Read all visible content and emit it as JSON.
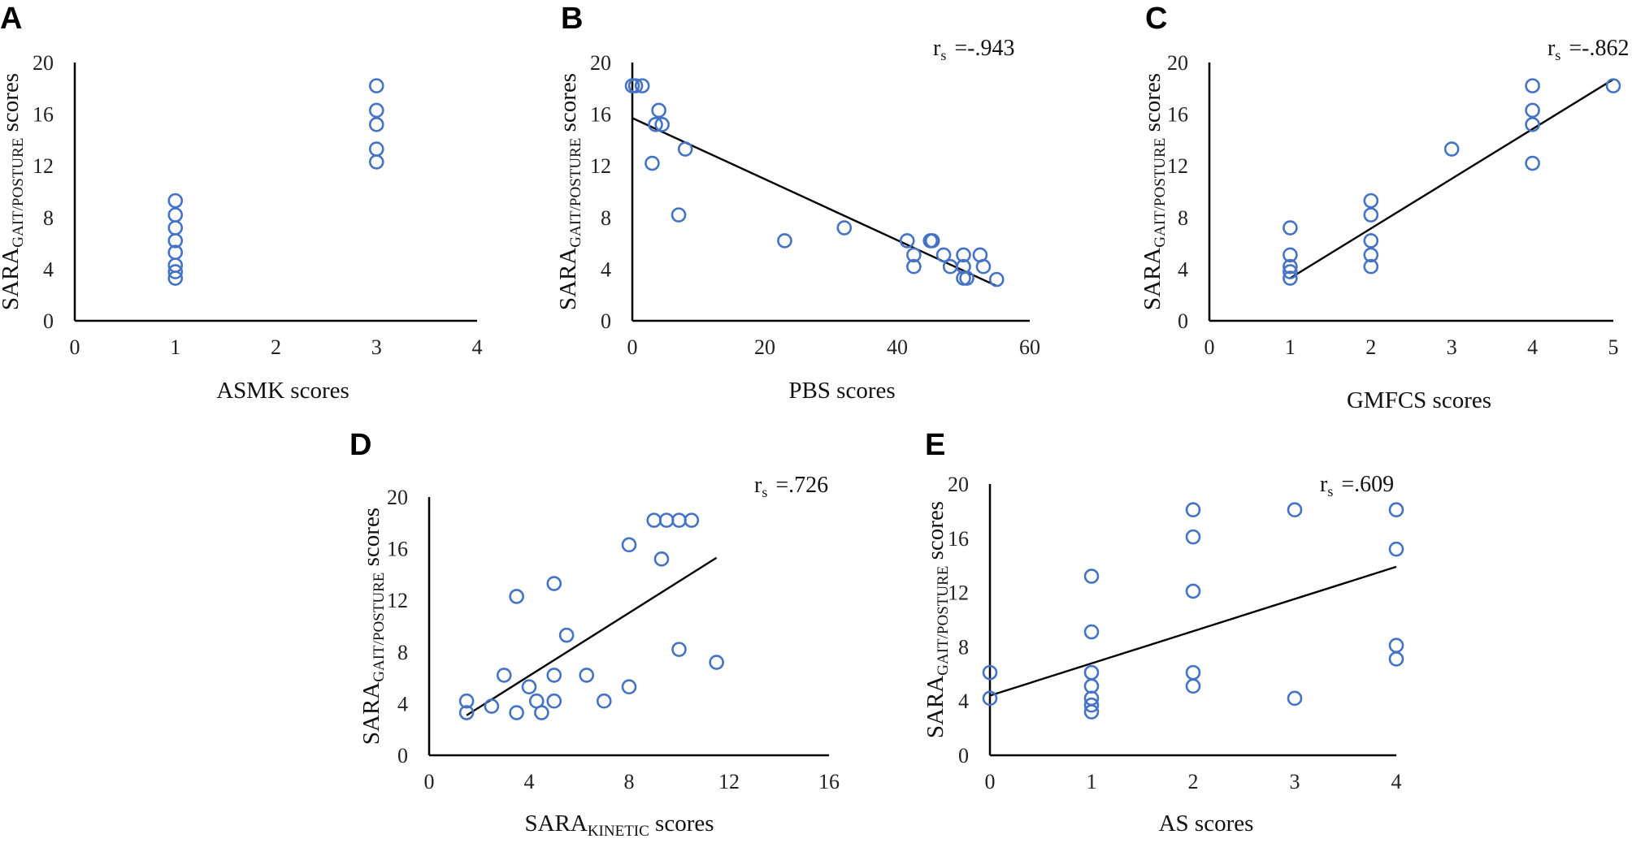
{
  "chart_data": [
    {
      "id": "A",
      "type": "scatter",
      "panel_label": "A",
      "xlabel": "ASMK scores",
      "ylabel": {
        "main": "SARA",
        "sub": "GAIT/POSTURE",
        "suffix": "scores"
      },
      "xlim": [
        0,
        4
      ],
      "xticks": [
        0,
        1,
        2,
        3,
        4
      ],
      "ylim": [
        0,
        20
      ],
      "yticks": [
        0,
        4,
        8,
        12,
        16,
        20
      ],
      "correlation": null,
      "trendline": null,
      "points": [
        [
          1,
          9.3
        ],
        [
          1,
          8.2
        ],
        [
          1,
          7.2
        ],
        [
          1,
          6.2
        ],
        [
          1,
          5.3
        ],
        [
          1,
          4.3
        ],
        [
          1,
          3.8
        ],
        [
          1,
          3.3
        ],
        [
          3,
          18.2
        ],
        [
          3,
          16.3
        ],
        [
          3,
          15.2
        ],
        [
          3,
          13.3
        ],
        [
          3,
          12.3
        ]
      ]
    },
    {
      "id": "B",
      "type": "scatter",
      "panel_label": "B",
      "xlabel": "PBS scores",
      "ylabel": {
        "main": "SARA",
        "sub": "GAIT/POSTURE",
        "suffix": "scores"
      },
      "xlim": [
        0,
        60
      ],
      "xticks": [
        0,
        20,
        40,
        60
      ],
      "ylim": [
        0,
        20
      ],
      "yticks": [
        0,
        4,
        8,
        12,
        16,
        20
      ],
      "correlation": {
        "symbol": "r",
        "sub": "s",
        "text": "=-.943"
      },
      "trendline": [
        [
          0,
          15.7
        ],
        [
          55,
          2.7
        ]
      ],
      "points": [
        [
          0,
          18.2
        ],
        [
          0.5,
          18.2
        ],
        [
          1.5,
          18.2
        ],
        [
          4,
          16.3
        ],
        [
          3.5,
          15.2
        ],
        [
          4.5,
          15.2
        ],
        [
          3,
          12.2
        ],
        [
          8,
          13.3
        ],
        [
          7,
          8.2
        ],
        [
          23,
          6.2
        ],
        [
          32,
          7.2
        ],
        [
          41.5,
          6.2
        ],
        [
          42.5,
          5.1
        ],
        [
          42.5,
          4.2
        ],
        [
          45,
          6.2
        ],
        [
          45.3,
          6.2
        ],
        [
          47,
          5.1
        ],
        [
          48,
          4.2
        ],
        [
          50,
          5.1
        ],
        [
          50,
          4.2
        ],
        [
          50,
          3.3
        ],
        [
          50.5,
          3.3
        ],
        [
          52.5,
          5.1
        ],
        [
          53,
          4.2
        ],
        [
          55,
          3.2
        ]
      ]
    },
    {
      "id": "C",
      "type": "scatter",
      "panel_label": "C",
      "xlabel": "GMFCS scores",
      "ylabel": {
        "main": "SARA",
        "sub": "GAIT/POSTURE",
        "suffix": "scores"
      },
      "xlim": [
        0,
        5
      ],
      "xticks": [
        0,
        1,
        2,
        3,
        4,
        5
      ],
      "ylim": [
        0,
        20
      ],
      "yticks": [
        0,
        4,
        8,
        12,
        16,
        20
      ],
      "correlation": {
        "symbol": "r",
        "sub": "s",
        "text": "=-.862"
      },
      "trendline": [
        [
          1,
          3.3
        ],
        [
          5,
          18.7
        ]
      ],
      "points": [
        [
          1,
          7.2
        ],
        [
          1,
          5.1
        ],
        [
          1,
          4.2
        ],
        [
          1,
          3.8
        ],
        [
          1,
          3.3
        ],
        [
          2,
          9.3
        ],
        [
          2,
          8.2
        ],
        [
          2,
          6.2
        ],
        [
          2,
          5.1
        ],
        [
          2,
          4.2
        ],
        [
          3,
          13.3
        ],
        [
          4,
          18.2
        ],
        [
          4,
          16.3
        ],
        [
          4,
          15.2
        ],
        [
          4,
          12.2
        ],
        [
          5,
          18.2
        ]
      ]
    },
    {
      "id": "D",
      "type": "scatter",
      "panel_label": "D",
      "xlabel": {
        "main": "SARA",
        "sub": "KINETIC",
        "suffix": "scores"
      },
      "ylabel": {
        "main": "SARA",
        "sub": "GAIT/POSTURE",
        "suffix": "scores"
      },
      "xlim": [
        0,
        16
      ],
      "xticks": [
        0,
        4,
        8,
        12,
        16
      ],
      "ylim": [
        0,
        20
      ],
      "yticks": [
        0,
        4,
        8,
        12,
        16,
        20
      ],
      "correlation": {
        "symbol": "r",
        "sub": "s",
        "text": "=.726"
      },
      "trendline": [
        [
          1.5,
          3.1
        ],
        [
          11.5,
          15.3
        ]
      ],
      "points": [
        [
          1.5,
          4.2
        ],
        [
          1.5,
          3.3
        ],
        [
          2.5,
          3.8
        ],
        [
          3,
          6.2
        ],
        [
          3.5,
          12.3
        ],
        [
          3.5,
          3.3
        ],
        [
          4,
          5.3
        ],
        [
          4.3,
          4.2
        ],
        [
          4.5,
          3.3
        ],
        [
          5,
          13.3
        ],
        [
          5,
          6.2
        ],
        [
          5,
          4.2
        ],
        [
          5.5,
          9.3
        ],
        [
          6.3,
          6.2
        ],
        [
          7,
          4.2
        ],
        [
          8,
          16.3
        ],
        [
          8,
          5.3
        ],
        [
          9,
          18.2
        ],
        [
          9.5,
          18.2
        ],
        [
          10,
          18.2
        ],
        [
          10.5,
          18.2
        ],
        [
          9.3,
          15.2
        ],
        [
          10,
          8.2
        ],
        [
          11.5,
          7.2
        ]
      ]
    },
    {
      "id": "E",
      "type": "scatter",
      "panel_label": "E",
      "xlabel": "AS scores",
      "ylabel": {
        "main": "SARA",
        "sub": "GAIT/POSTURE",
        "suffix": "scores"
      },
      "xlim": [
        0,
        4
      ],
      "xticks": [
        0,
        1,
        2,
        3,
        4
      ],
      "ylim": [
        0,
        20
      ],
      "yticks": [
        0,
        4,
        8,
        12,
        16,
        20
      ],
      "correlation": {
        "symbol": "r",
        "sub": "s",
        "text": "=.609"
      },
      "trendline": [
        [
          0,
          4.4
        ],
        [
          4,
          13.9
        ]
      ],
      "points": [
        [
          0,
          6.1
        ],
        [
          0,
          4.2
        ],
        [
          1,
          13.2
        ],
        [
          1,
          9.1
        ],
        [
          1,
          6.1
        ],
        [
          1,
          5.1
        ],
        [
          1,
          4.2
        ],
        [
          1,
          3.7
        ],
        [
          1,
          3.2
        ],
        [
          2,
          18.1
        ],
        [
          2,
          16.1
        ],
        [
          2,
          12.1
        ],
        [
          2,
          6.1
        ],
        [
          2,
          5.1
        ],
        [
          3,
          18.1
        ],
        [
          3,
          4.2
        ],
        [
          4,
          18.1
        ],
        [
          4,
          15.2
        ],
        [
          4,
          8.1
        ],
        [
          4,
          7.1
        ]
      ]
    }
  ]
}
